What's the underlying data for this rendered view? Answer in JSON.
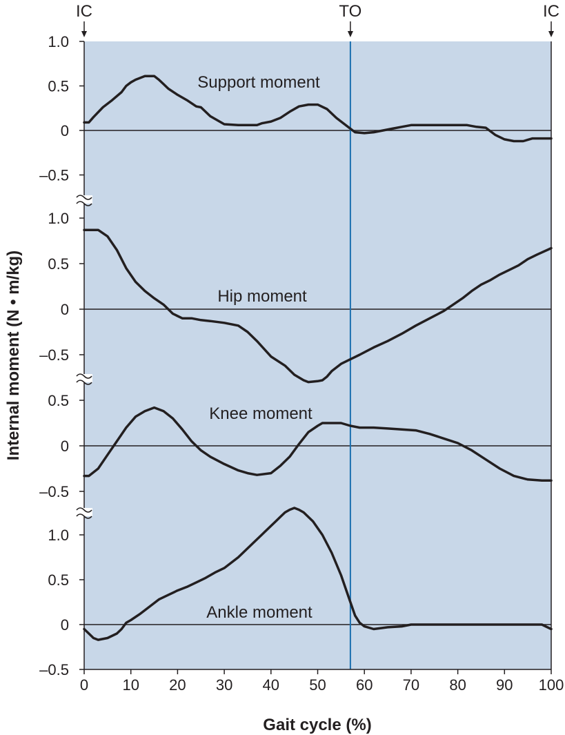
{
  "chart_data": {
    "type": "line",
    "xlabel": "Gait cycle (%)",
    "ylabel": "Internal moment (N • m/kg)",
    "xlim": [
      0,
      100
    ],
    "x_ticks": [
      "0",
      "10",
      "20",
      "30",
      "40",
      "50",
      "60",
      "70",
      "80",
      "90",
      "100"
    ],
    "background_color": "#c8d7e8",
    "line_color": "#231f20",
    "toe_off_line_color": "#1a6faf",
    "events": [
      {
        "label": "IC",
        "x": 0
      },
      {
        "label": "TO",
        "x": 57
      },
      {
        "label": "IC",
        "x": 100
      }
    ],
    "panels": [
      {
        "name": "Support moment",
        "ylim": [
          -0.5,
          1.0
        ],
        "y_ticks": [
          "1.0",
          "0.5",
          "0",
          "–0.5"
        ],
        "x": [
          0,
          1,
          2,
          4,
          6,
          8,
          9,
          10,
          11,
          13,
          15,
          16,
          17,
          18,
          20,
          22,
          24,
          25,
          27,
          30,
          33,
          35,
          37,
          38,
          40,
          42,
          44,
          46,
          48,
          50,
          52,
          54,
          56,
          58,
          60,
          62,
          64,
          66,
          68,
          70,
          72,
          74,
          76,
          78,
          80,
          82,
          84,
          86,
          88,
          90,
          92,
          94,
          96,
          98,
          100
        ],
        "y": [
          0.09,
          0.09,
          0.15,
          0.26,
          0.34,
          0.43,
          0.5,
          0.54,
          0.57,
          0.61,
          0.61,
          0.57,
          0.52,
          0.47,
          0.4,
          0.34,
          0.27,
          0.26,
          0.16,
          0.07,
          0.06,
          0.06,
          0.06,
          0.08,
          0.1,
          0.14,
          0.21,
          0.27,
          0.29,
          0.29,
          0.24,
          0.14,
          0.06,
          -0.02,
          -0.03,
          -0.02,
          0.0,
          0.02,
          0.04,
          0.06,
          0.06,
          0.06,
          0.06,
          0.06,
          0.06,
          0.06,
          0.04,
          0.03,
          -0.05,
          -0.1,
          -0.12,
          -0.12,
          -0.09,
          -0.09,
          -0.09
        ]
      },
      {
        "name": "Hip moment",
        "ylim": [
          -0.65,
          1.0
        ],
        "y_ticks": [
          "1.0",
          "0.5",
          "0",
          "–0.5"
        ],
        "x": [
          0,
          1,
          3,
          5,
          7,
          9,
          11,
          13,
          15,
          17,
          19,
          21,
          23,
          25,
          27,
          30,
          33,
          35,
          37,
          40,
          43,
          45,
          47,
          48,
          50,
          51,
          52,
          53,
          55,
          57,
          59,
          62,
          65,
          68,
          71,
          74,
          77,
          79,
          81,
          83,
          85,
          87,
          89,
          91,
          93,
          95,
          97,
          100
        ],
        "y": [
          0.87,
          0.87,
          0.87,
          0.8,
          0.65,
          0.45,
          0.3,
          0.2,
          0.12,
          0.05,
          -0.05,
          -0.1,
          -0.1,
          -0.12,
          -0.13,
          -0.15,
          -0.18,
          -0.25,
          -0.35,
          -0.52,
          -0.62,
          -0.72,
          -0.78,
          -0.8,
          -0.79,
          -0.78,
          -0.74,
          -0.68,
          -0.6,
          -0.55,
          -0.5,
          -0.42,
          -0.35,
          -0.27,
          -0.18,
          -0.1,
          -0.02,
          0.05,
          0.12,
          0.2,
          0.27,
          0.32,
          0.38,
          0.43,
          0.48,
          0.55,
          0.6,
          0.67
        ]
      },
      {
        "name": "Knee moment",
        "ylim": [
          -0.5,
          0.5
        ],
        "y_ticks": [
          "0.5",
          "0",
          "–0.5"
        ],
        "x": [
          0,
          1,
          3,
          5,
          7,
          9,
          11,
          13,
          15,
          17,
          19,
          21,
          23,
          25,
          27,
          30,
          33,
          35,
          37,
          40,
          42,
          44,
          46,
          48,
          50,
          51,
          52,
          53,
          55,
          57,
          59,
          62,
          65,
          68,
          71,
          74,
          77,
          80,
          83,
          86,
          89,
          92,
          95,
          98,
          100
        ],
        "y": [
          -0.33,
          -0.33,
          -0.25,
          -0.1,
          0.05,
          0.2,
          0.32,
          0.38,
          0.42,
          0.38,
          0.3,
          0.18,
          0.05,
          -0.05,
          -0.12,
          -0.2,
          -0.27,
          -0.3,
          -0.32,
          -0.3,
          -0.22,
          -0.12,
          0.02,
          0.15,
          0.22,
          0.25,
          0.25,
          0.25,
          0.25,
          0.22,
          0.2,
          0.2,
          0.19,
          0.18,
          0.17,
          0.13,
          0.08,
          0.03,
          -0.05,
          -0.15,
          -0.25,
          -0.33,
          -0.37,
          -0.38,
          -0.38
        ]
      },
      {
        "name": "Ankle moment",
        "ylim": [
          -0.5,
          1.45
        ],
        "y_ticks": [
          "1.0",
          "0.5",
          "0",
          "–0.5"
        ],
        "x": [
          0,
          1,
          2,
          3,
          5,
          7,
          8,
          9,
          10,
          12,
          14,
          16,
          18,
          20,
          22,
          24,
          26,
          28,
          30,
          33,
          36,
          38,
          40,
          41,
          42,
          43,
          44,
          45,
          46,
          47,
          49,
          51,
          53,
          55,
          57,
          58,
          59,
          60,
          62,
          65,
          68,
          70,
          75,
          80,
          85,
          90,
          95,
          98,
          100
        ],
        "y": [
          -0.05,
          -0.1,
          -0.15,
          -0.17,
          -0.15,
          -0.1,
          -0.05,
          0.02,
          0.05,
          0.12,
          0.2,
          0.28,
          0.33,
          0.38,
          0.42,
          0.47,
          0.52,
          0.58,
          0.63,
          0.75,
          0.9,
          1.0,
          1.1,
          1.15,
          1.2,
          1.25,
          1.28,
          1.3,
          1.28,
          1.25,
          1.15,
          1.0,
          0.8,
          0.55,
          0.25,
          0.1,
          0.02,
          -0.02,
          -0.05,
          -0.03,
          -0.02,
          0.0,
          0.0,
          0.0,
          0.0,
          0.0,
          0.0,
          0.0,
          -0.05
        ]
      }
    ]
  }
}
